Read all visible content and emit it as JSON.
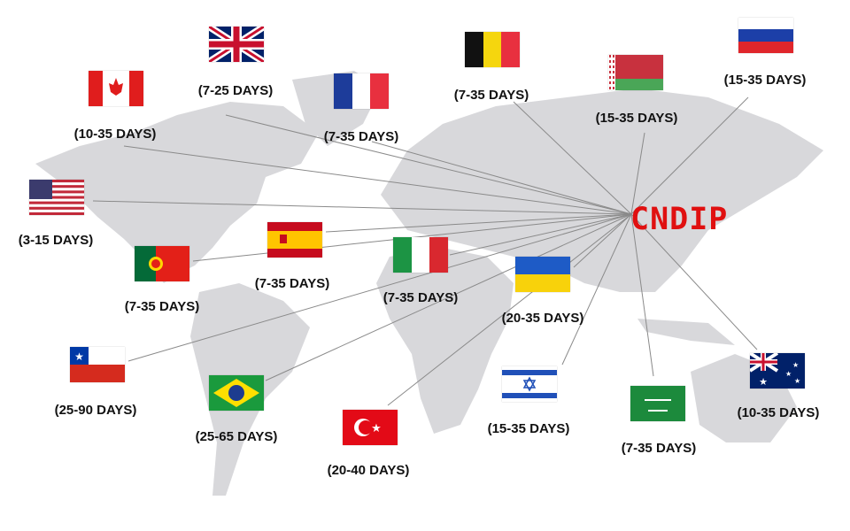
{
  "hub": {
    "label": "CNDIP",
    "color": "#e01010"
  },
  "destinations": [
    {
      "country": "uk",
      "days": "(7-25 DAYS)"
    },
    {
      "country": "canada",
      "days": "(10-35 DAYS)"
    },
    {
      "country": "france",
      "days": "(7-35 DAYS)"
    },
    {
      "country": "belgium",
      "days": "(7-35 DAYS)"
    },
    {
      "country": "belarus",
      "days": "(15-35 DAYS)"
    },
    {
      "country": "russia",
      "days": "(15-35 DAYS)"
    },
    {
      "country": "usa",
      "days": "(3-15 DAYS)"
    },
    {
      "country": "spain",
      "days": "(7-35 DAYS)"
    },
    {
      "country": "portugal",
      "days": "(7-35 DAYS)"
    },
    {
      "country": "italy",
      "days": "(7-35 DAYS)"
    },
    {
      "country": "ukraine",
      "days": "(20-35 DAYS)"
    },
    {
      "country": "chile",
      "days": "(25-90 DAYS)"
    },
    {
      "country": "brazil",
      "days": "(25-65 DAYS)"
    },
    {
      "country": "turkey",
      "days": "(20-40 DAYS)"
    },
    {
      "country": "israel",
      "days": "(15-35 DAYS)"
    },
    {
      "country": "saudi-arabia",
      "days": "(7-35 DAYS)"
    },
    {
      "country": "australia",
      "days": "(10-35 DAYS)"
    }
  ],
  "colors": {
    "land": "#d8d8db",
    "line": "#8a8a8a"
  }
}
